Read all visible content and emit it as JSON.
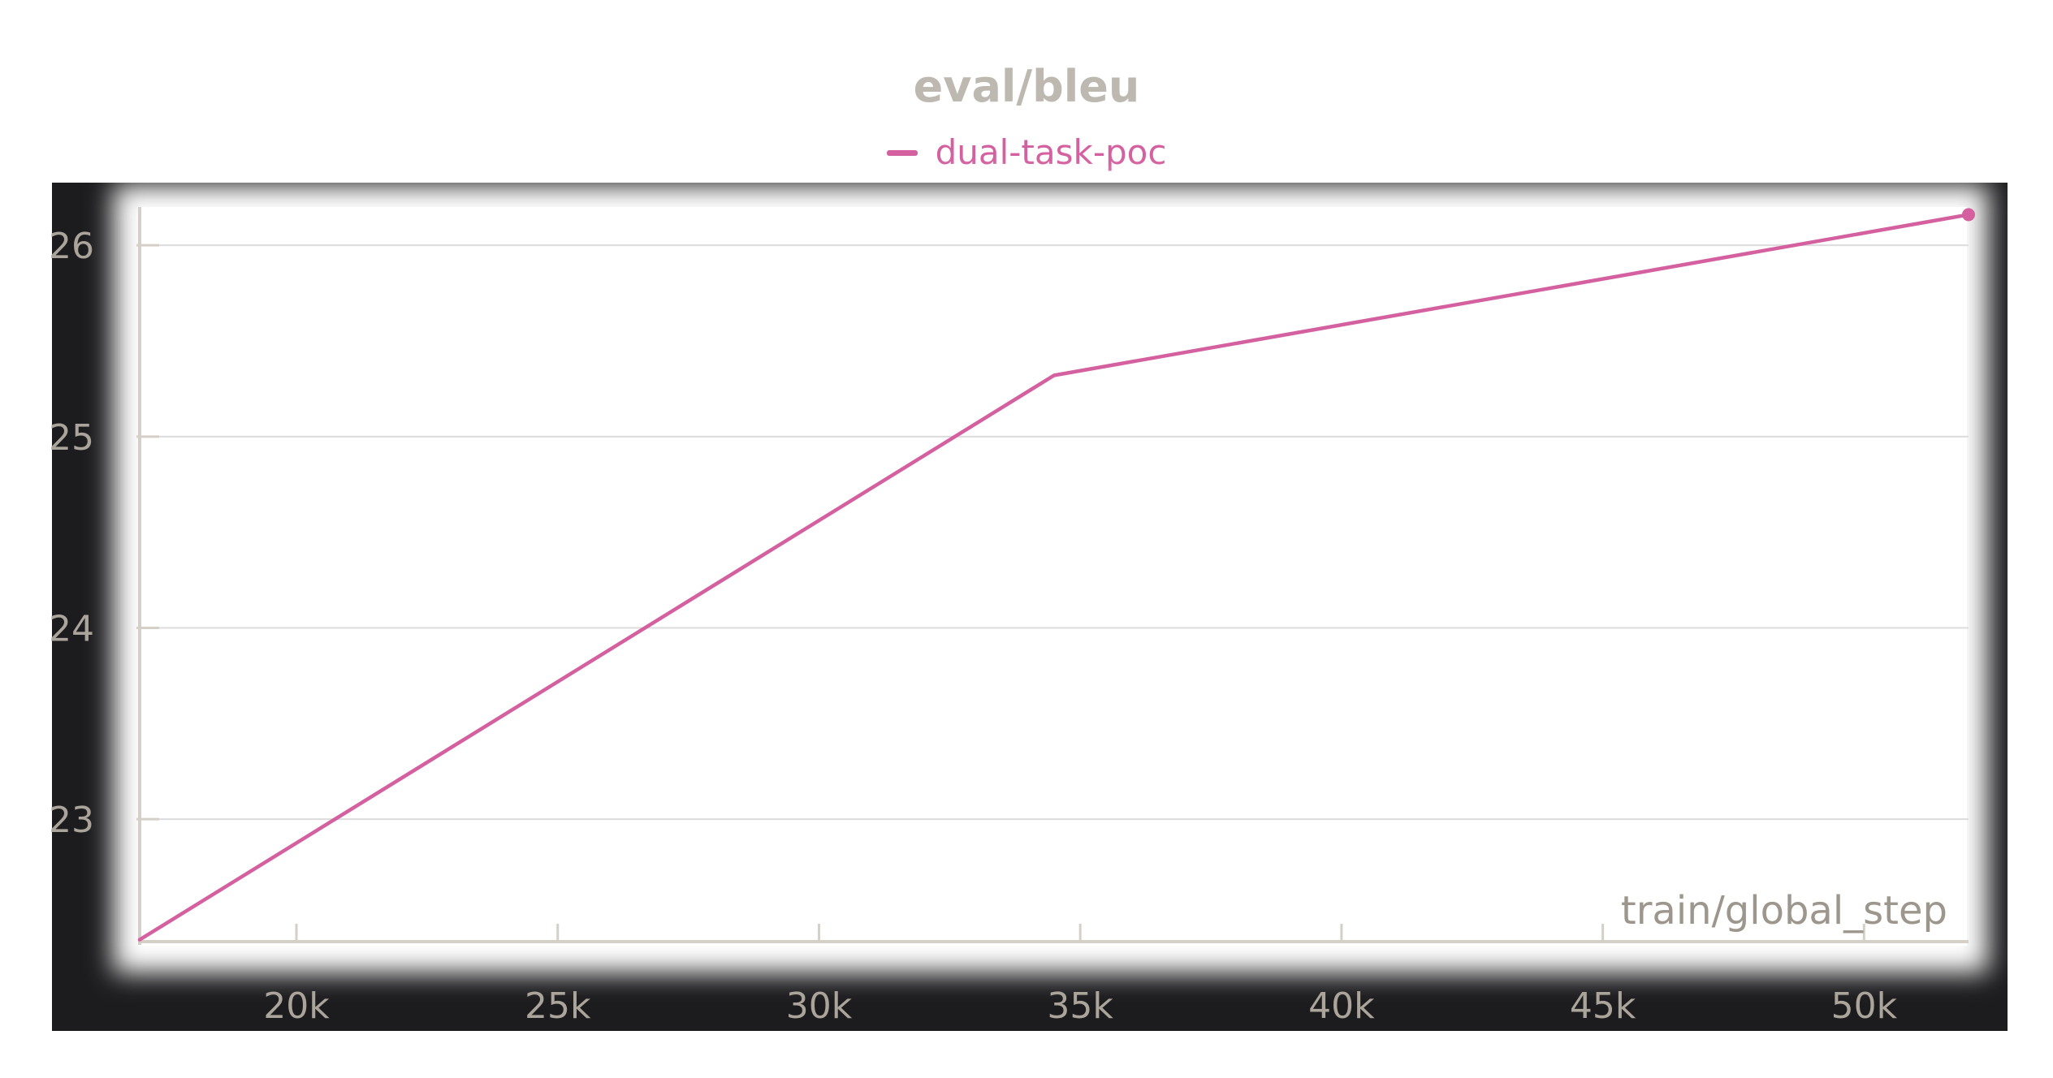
{
  "chart_data": {
    "type": "line",
    "title": "eval/bleu",
    "xlabel": "train/global_step",
    "ylabel": "",
    "xlim": [
      17000,
      52000
    ],
    "ylim": [
      22.36,
      26.2
    ],
    "x_ticks": [
      20000,
      25000,
      30000,
      35000,
      40000,
      45000,
      50000
    ],
    "x_tick_labels": [
      "20k",
      "25k",
      "30k",
      "35k",
      "40k",
      "45k",
      "50k"
    ],
    "y_ticks": [
      23,
      24,
      25,
      26
    ],
    "y_tick_labels": [
      "23",
      "24",
      "25",
      "26"
    ],
    "grid": "horizontal",
    "legend": "top-center",
    "series": [
      {
        "name": "dual-task-poc",
        "color": "#d4609f",
        "x": [
          17000,
          34500,
          52000
        ],
        "y": [
          22.37,
          25.32,
          26.16
        ]
      }
    ]
  }
}
